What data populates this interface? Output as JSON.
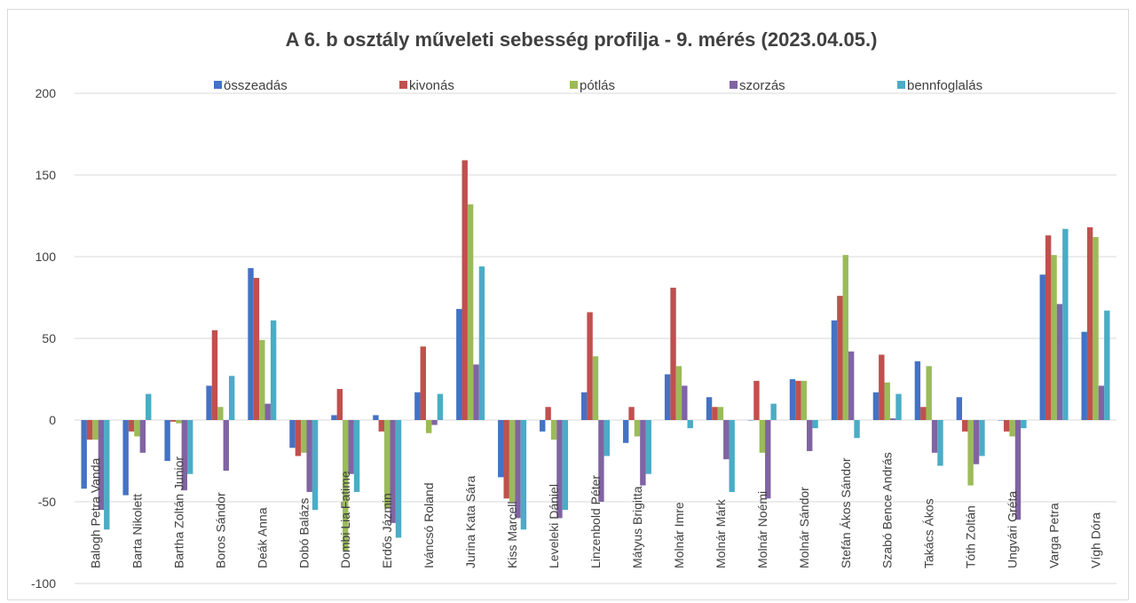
{
  "chart_data": {
    "type": "bar",
    "title": "A 6. b osztály műveleti sebesség profilja - 9. mérés (2023.04.05.)",
    "xlabel": "",
    "ylabel": "",
    "ylim": [
      -100,
      200
    ],
    "yticks": [
      -100,
      -50,
      0,
      50,
      100,
      150,
      200
    ],
    "ytick_labels": [
      "-100",
      "-50",
      "0",
      "50",
      "100",
      "150",
      "200"
    ],
    "grid": true,
    "legend_position": "top",
    "categories": [
      "Balogh Petra Vanda",
      "Barta Nikolett",
      "Bartha Zoltán Junior",
      "Boros Sándor",
      "Deák Anna",
      "Dobó Balázs",
      "Dombi Lia Fatime",
      "Erdős Jázmin",
      "Iváncsó Roland",
      "Jurina Kata Sára",
      "Kiss Marcell",
      "Leveleki Dániel",
      "Linzenbold Péter",
      "Mátyus Brigitta",
      "Molnár Imre",
      "Molnár Márk",
      "Molnár Noémi",
      "Molnár Sándor",
      "Stefán Ákos Sándor",
      "Szabó Bence András",
      "Takács Ákos",
      "Tóth Zoltán",
      "Ungvári Gréta",
      "Varga Petra",
      "Vígh Dóra"
    ],
    "series": [
      {
        "name": "összeadás",
        "color": "#4472C4",
        "values": [
          -42,
          -46,
          -25,
          21,
          93,
          -17,
          3,
          3,
          17,
          68,
          -35,
          -7,
          17,
          -14,
          28,
          14,
          0,
          25,
          61,
          17,
          36,
          14,
          0,
          89,
          54
        ]
      },
      {
        "name": "kivonás",
        "color": "#C0504D",
        "values": [
          -12,
          -7,
          -1,
          55,
          87,
          -22,
          19,
          -7,
          45,
          159,
          -48,
          8,
          66,
          8,
          81,
          8,
          24,
          24,
          76,
          40,
          8,
          -7,
          -7,
          113,
          118
        ]
      },
      {
        "name": "pótlás",
        "color": "#9BBB59",
        "values": [
          -12,
          -10,
          -2,
          8,
          49,
          -20,
          -80,
          -54,
          -8,
          132,
          -50,
          -12,
          39,
          -10,
          33,
          8,
          -20,
          24,
          101,
          23,
          33,
          -40,
          -10,
          101,
          112
        ]
      },
      {
        "name": "szorzás",
        "color": "#8064A2",
        "values": [
          -55,
          -20,
          -43,
          -31,
          10,
          -44,
          -33,
          -63,
          -3,
          34,
          -60,
          -60,
          -50,
          -40,
          21,
          -24,
          -48,
          -19,
          42,
          1,
          -20,
          -27,
          -61,
          71,
          21
        ]
      },
      {
        "name": "bennfoglalás",
        "color": "#4BACC6",
        "values": [
          -67,
          16,
          -33,
          27,
          61,
          -55,
          -44,
          -72,
          16,
          94,
          -67,
          -55,
          -22,
          -33,
          -5,
          -44,
          10,
          -5,
          -11,
          16,
          -28,
          -22,
          -5,
          117,
          67
        ]
      }
    ]
  }
}
